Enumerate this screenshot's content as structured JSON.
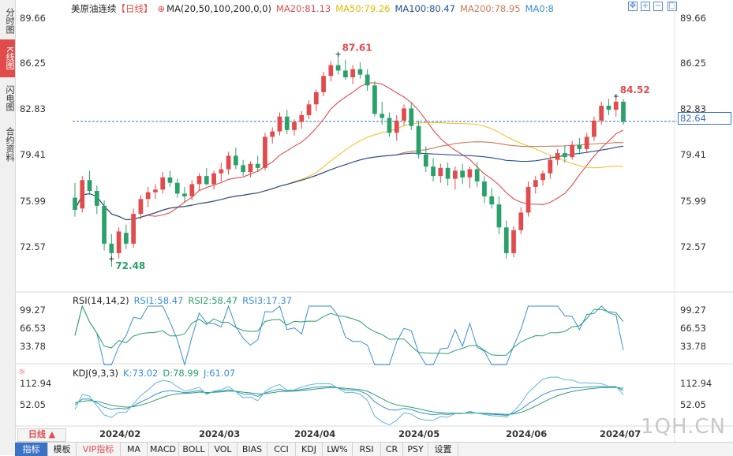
{
  "side_tabs": [
    {
      "label": "分时图",
      "active": false
    },
    {
      "label": "K线图",
      "active": true
    },
    {
      "label": "闪电图",
      "active": false
    },
    {
      "label": "合约资料",
      "active": false
    }
  ],
  "header": {
    "title": "美原油连续",
    "period": "【日线】",
    "ma_label": "MA(20,50,100,200,0,0)",
    "ma20": "MA20:81.13",
    "ma50": "MA50:79.26",
    "ma100": "MA100:80.47",
    "ma200": "MA200:78.95",
    "ma0": "MA0:8"
  },
  "colors": {
    "up": "#e24b4b",
    "down": "#2aa06a",
    "ma20": "#e24b4b",
    "ma50": "#f1c232",
    "ma100": "#c97b56",
    "ma200": "#1f4f8f",
    "rsi1": "#3a8dd8",
    "rsi2": "#2aa06a",
    "rsi3": "#e24b4b",
    "kdj_k": "#3a8dd8",
    "kdj_d": "#2aa06a",
    "kdj_j": "#e24b4b",
    "price_line": "#3a73c6"
  },
  "price_panel": {
    "ticks": [
      "89.66",
      "86.25",
      "82.83",
      "79.41",
      "75.99",
      "72.57"
    ],
    "high_label": "87.61",
    "recent_high_label": "84.52",
    "low_label": "72.48",
    "current_label": "82.83",
    "current_price": "82.64"
  },
  "rsi_panel": {
    "title": "RSI(14,14,2)",
    "rsi1": "RSI1:58.47",
    "rsi2": "RSI2:58.47",
    "rsi3": "RSI3:17.37",
    "ticks": [
      "99.27",
      "66.53",
      "33.78"
    ]
  },
  "kdj_panel": {
    "title": "KDJ(9,3,3)",
    "k": "K:73.02",
    "d": "D:78.99",
    "j": "J:61.07",
    "ticks": [
      "112.94",
      "52.05"
    ]
  },
  "x_axis": {
    "period_button": "日线 ▲",
    "dates": [
      "2024/02",
      "2024/03",
      "2024/04",
      "2024/05",
      "2024/06",
      "2024/07"
    ]
  },
  "bottom_tabs": [
    {
      "label": "指标",
      "active": true
    },
    {
      "label": "模板",
      "active": false
    },
    {
      "label": "VIP指标",
      "active": false
    },
    {
      "label": "MA",
      "active": false
    },
    {
      "label": "MACD",
      "active": false
    },
    {
      "label": "BOLL",
      "active": false
    },
    {
      "label": "VOL",
      "active": false
    },
    {
      "label": "BIAS",
      "active": false
    },
    {
      "label": "CCI",
      "active": false
    },
    {
      "label": "KDJ",
      "active": false
    },
    {
      "label": "LW%",
      "active": false
    },
    {
      "label": "RSI",
      "active": false
    },
    {
      "label": "CR",
      "active": false
    },
    {
      "label": "PSY",
      "active": false
    },
    {
      "label": "设置",
      "active": false
    }
  ],
  "watermark": "1QH.CN",
  "chart_data": {
    "type": "candlestick",
    "y_range": [
      71.2,
      90.8
    ],
    "candles": [
      [
        77.0,
        78.1,
        75.6,
        76.1
      ],
      [
        76.2,
        78.6,
        75.9,
        78.3
      ],
      [
        78.3,
        79.0,
        77.2,
        77.5
      ],
      [
        77.5,
        77.9,
        75.8,
        76.4
      ],
      [
        76.4,
        76.8,
        73.1,
        73.6
      ],
      [
        73.6,
        74.3,
        71.9,
        72.9
      ],
      [
        72.9,
        74.8,
        72.5,
        74.5
      ],
      [
        74.4,
        75.0,
        73.2,
        73.6
      ],
      [
        73.6,
        76.2,
        73.3,
        75.8
      ],
      [
        75.8,
        77.2,
        75.4,
        76.9
      ],
      [
        76.9,
        77.8,
        76.3,
        77.4
      ],
      [
        77.4,
        78.0,
        76.9,
        77.6
      ],
      [
        77.6,
        78.9,
        77.3,
        78.5
      ],
      [
        78.5,
        79.0,
        77.8,
        78.1
      ],
      [
        78.1,
        78.4,
        77.0,
        77.3
      ],
      [
        77.3,
        77.8,
        76.6,
        77.1
      ],
      [
        77.1,
        78.3,
        76.8,
        78.0
      ],
      [
        78.0,
        78.8,
        77.5,
        78.6
      ],
      [
        78.6,
        79.2,
        77.9,
        78.0
      ],
      [
        78.0,
        79.0,
        77.6,
        78.8
      ],
      [
        78.8,
        79.6,
        78.2,
        79.1
      ],
      [
        79.1,
        80.4,
        78.7,
        80.1
      ],
      [
        80.1,
        80.7,
        79.1,
        79.4
      ],
      [
        79.4,
        79.8,
        78.6,
        78.9
      ],
      [
        78.9,
        79.7,
        78.5,
        79.5
      ],
      [
        79.5,
        80.1,
        78.9,
        79.2
      ],
      [
        79.2,
        81.8,
        79.0,
        81.5
      ],
      [
        81.5,
        82.2,
        81.0,
        81.9
      ],
      [
        81.9,
        83.3,
        81.6,
        83.0
      ],
      [
        83.0,
        83.5,
        81.7,
        82.0
      ],
      [
        82.0,
        82.8,
        81.6,
        82.6
      ],
      [
        82.6,
        83.4,
        82.1,
        83.1
      ],
      [
        83.1,
        84.2,
        82.8,
        83.9
      ],
      [
        83.9,
        85.0,
        83.4,
        84.8
      ],
      [
        84.8,
        86.3,
        84.5,
        86.0
      ],
      [
        86.0,
        87.1,
        85.6,
        86.8
      ],
      [
        86.8,
        87.6,
        86.1,
        86.4
      ],
      [
        86.4,
        87.2,
        85.7,
        85.9
      ],
      [
        85.9,
        86.8,
        85.4,
        86.5
      ],
      [
        86.5,
        87.0,
        85.8,
        86.1
      ],
      [
        86.1,
        86.5,
        84.9,
        85.3
      ],
      [
        85.3,
        85.6,
        83.0,
        83.2
      ],
      [
        83.2,
        84.1,
        82.4,
        82.9
      ],
      [
        82.9,
        83.3,
        81.5,
        81.8
      ],
      [
        81.8,
        83.1,
        81.2,
        82.7
      ],
      [
        82.7,
        83.9,
        82.3,
        83.6
      ],
      [
        83.6,
        84.0,
        82.0,
        82.3
      ],
      [
        82.3,
        82.7,
        79.9,
        80.2
      ],
      [
        80.2,
        80.8,
        78.9,
        79.3
      ],
      [
        79.3,
        79.9,
        78.2,
        78.6
      ],
      [
        78.6,
        79.5,
        78.1,
        79.2
      ],
      [
        79.2,
        79.6,
        77.9,
        78.4
      ],
      [
        78.4,
        79.3,
        77.6,
        79.0
      ],
      [
        79.0,
        79.5,
        78.0,
        78.5
      ],
      [
        78.5,
        79.3,
        77.7,
        79.1
      ],
      [
        79.1,
        79.6,
        77.8,
        78.2
      ],
      [
        78.2,
        78.6,
        76.6,
        77.1
      ],
      [
        77.1,
        77.7,
        76.2,
        76.5
      ],
      [
        76.5,
        77.1,
        74.3,
        74.8
      ],
      [
        74.8,
        75.3,
        72.5,
        72.9
      ],
      [
        72.9,
        74.9,
        72.6,
        74.6
      ],
      [
        74.6,
        76.3,
        74.3,
        75.9
      ],
      [
        75.9,
        78.2,
        75.6,
        77.8
      ],
      [
        77.8,
        78.6,
        77.3,
        78.3
      ],
      [
        78.3,
        79.0,
        77.9,
        78.8
      ],
      [
        78.8,
        80.1,
        78.4,
        79.8
      ],
      [
        79.8,
        80.6,
        79.4,
        80.3
      ],
      [
        80.3,
        80.9,
        79.6,
        80.0
      ],
      [
        80.0,
        81.2,
        79.8,
        80.9
      ],
      [
        80.9,
        81.4,
        80.2,
        80.6
      ],
      [
        80.6,
        81.8,
        80.3,
        81.5
      ],
      [
        81.5,
        83.0,
        81.2,
        82.7
      ],
      [
        82.7,
        84.1,
        82.4,
        83.8
      ],
      [
        83.8,
        84.3,
        83.1,
        83.5
      ],
      [
        83.5,
        84.5,
        83.0,
        84.1
      ],
      [
        84.1,
        84.3,
        82.4,
        82.6
      ]
    ],
    "low_point": 72.48,
    "high_point": 87.61,
    "last_price": 82.64
  }
}
